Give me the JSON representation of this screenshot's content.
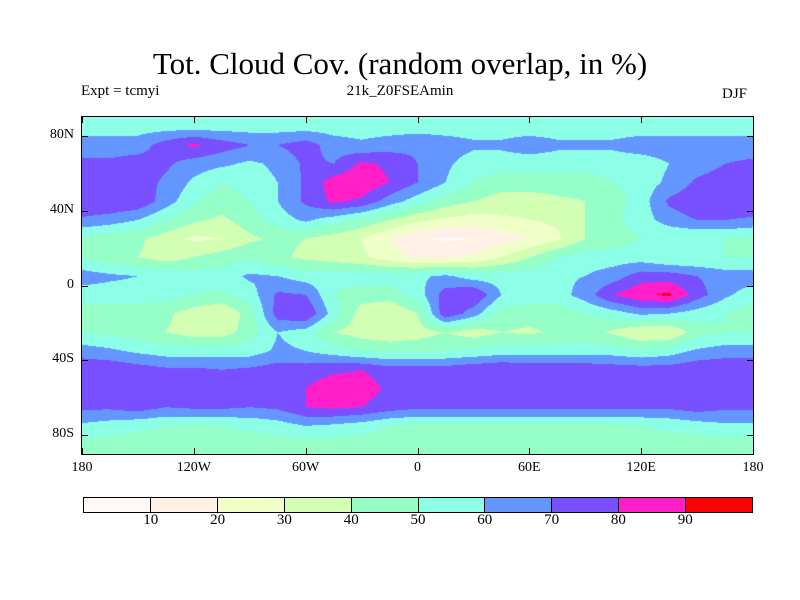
{
  "header": {
    "title": "Tot. Cloud Cov. (random overlap, in %)",
    "experiment": "Expt = tcmyi",
    "run": "21k_Z0FSEAmin",
    "season": "DJF"
  },
  "chart_data": {
    "type": "heatmap",
    "title": "Tot. Cloud Cov. (random overlap, in %)",
    "projection": "cylindrical equidistant",
    "y_ticks": [
      "80N",
      "40N",
      "0",
      "40S",
      "80S"
    ],
    "y_tick_values": [
      80,
      40,
      0,
      -40,
      -80
    ],
    "x_ticks": [
      "180",
      "120W",
      "60W",
      "0",
      "60E",
      "120E",
      "180"
    ],
    "x_tick_values": [
      -180,
      -120,
      -60,
      0,
      60,
      120,
      180
    ],
    "xlim": [
      -180,
      180
    ],
    "ylim": [
      -90,
      90
    ],
    "colorbar": {
      "levels": [
        10,
        20,
        30,
        40,
        50,
        60,
        70,
        80,
        90
      ],
      "labels": [
        "10",
        "20",
        "30",
        "40",
        "50",
        "60",
        "70",
        "80",
        "90"
      ],
      "colors": [
        "#fff8f6",
        "#fff0e6",
        "#f0ffc8",
        "#d2ffb4",
        "#96ffc8",
        "#8cffe6",
        "#6496ff",
        "#7850ff",
        "#ff1ec8",
        "#ff0000"
      ]
    },
    "grid_lons": [
      -180,
      -165,
      -150,
      -135,
      -120,
      -105,
      -90,
      -75,
      -60,
      -45,
      -30,
      -15,
      0,
      15,
      30,
      45,
      60,
      75,
      90,
      105,
      120,
      135,
      150,
      165
    ],
    "grid_lats": [
      85,
      75,
      65,
      55,
      45,
      35,
      25,
      15,
      5,
      -5,
      -15,
      -25,
      -35,
      -45,
      -55,
      -65,
      -75,
      -85
    ],
    "values_approx": [
      [
        55,
        55,
        55,
        55,
        55,
        55,
        55,
        55,
        55,
        55,
        55,
        55,
        55,
        55,
        55,
        55,
        55,
        55,
        55,
        55,
        55,
        55,
        55,
        55
      ],
      [
        65,
        65,
        65,
        75,
        82,
        75,
        70,
        70,
        75,
        65,
        62,
        65,
        68,
        65,
        62,
        62,
        65,
        62,
        62,
        62,
        65,
        65,
        65,
        65
      ],
      [
        72,
        72,
        75,
        72,
        65,
        62,
        58,
        62,
        72,
        70,
        82,
        78,
        70,
        62,
        55,
        55,
        55,
        55,
        55,
        55,
        55,
        60,
        65,
        70
      ],
      [
        75,
        78,
        75,
        68,
        58,
        50,
        55,
        60,
        72,
        85,
        88,
        80,
        70,
        60,
        50,
        45,
        45,
        45,
        45,
        50,
        55,
        62,
        72,
        75
      ],
      [
        80,
        80,
        78,
        65,
        52,
        45,
        50,
        60,
        72,
        82,
        78,
        65,
        55,
        45,
        40,
        35,
        35,
        38,
        40,
        45,
        55,
        72,
        78,
        80
      ],
      [
        68,
        65,
        60,
        50,
        42,
        38,
        45,
        55,
        62,
        55,
        48,
        40,
        32,
        28,
        25,
        28,
        30,
        32,
        40,
        48,
        55,
        65,
        70,
        70
      ],
      [
        48,
        45,
        42,
        35,
        28,
        30,
        38,
        42,
        40,
        35,
        30,
        20,
        12,
        8,
        10,
        15,
        20,
        28,
        40,
        45,
        50,
        50,
        50,
        50
      ],
      [
        50,
        45,
        40,
        35,
        40,
        45,
        48,
        42,
        38,
        35,
        32,
        25,
        18,
        18,
        22,
        30,
        40,
        50,
        55,
        55,
        55,
        50,
        50,
        50
      ],
      [
        65,
        62,
        60,
        58,
        55,
        55,
        62,
        60,
        55,
        55,
        55,
        55,
        58,
        62,
        55,
        55,
        55,
        58,
        60,
        65,
        75,
        75,
        70,
        65
      ],
      [
        55,
        55,
        55,
        55,
        50,
        48,
        55,
        72,
        70,
        50,
        45,
        45,
        55,
        75,
        80,
        60,
        55,
        55,
        65,
        80,
        88,
        92,
        75,
        62
      ],
      [
        45,
        45,
        45,
        42,
        35,
        30,
        45,
        75,
        80,
        55,
        35,
        30,
        40,
        78,
        65,
        45,
        45,
        45,
        50,
        55,
        62,
        60,
        55,
        50
      ],
      [
        50,
        48,
        45,
        40,
        35,
        35,
        45,
        60,
        55,
        40,
        35,
        32,
        35,
        40,
        35,
        40,
        38,
        42,
        45,
        38,
        30,
        30,
        45,
        50
      ],
      [
        65,
        62,
        58,
        55,
        55,
        55,
        55,
        62,
        60,
        55,
        50,
        48,
        48,
        50,
        52,
        55,
        55,
        55,
        55,
        55,
        52,
        55,
        62,
        65
      ],
      [
        78,
        78,
        75,
        72,
        72,
        70,
        72,
        75,
        75,
        78,
        80,
        75,
        75,
        75,
        78,
        80,
        78,
        78,
        78,
        76,
        75,
        75,
        78,
        78
      ],
      [
        75,
        75,
        75,
        75,
        75,
        75,
        78,
        72,
        80,
        86,
        85,
        78,
        75,
        75,
        75,
        75,
        75,
        72,
        75,
        75,
        75,
        75,
        75,
        75
      ],
      [
        72,
        72,
        75,
        70,
        72,
        72,
        70,
        72,
        80,
        82,
        80,
        75,
        72,
        72,
        72,
        72,
        72,
        72,
        72,
        72,
        72,
        72,
        75,
        72
      ],
      [
        58,
        55,
        52,
        50,
        48,
        50,
        52,
        55,
        60,
        58,
        55,
        50,
        48,
        48,
        48,
        48,
        48,
        48,
        48,
        48,
        50,
        52,
        55,
        58
      ],
      [
        45,
        45,
        45,
        45,
        45,
        45,
        45,
        45,
        45,
        45,
        45,
        45,
        45,
        45,
        45,
        45,
        45,
        45,
        45,
        45,
        45,
        45,
        45,
        45
      ]
    ]
  }
}
